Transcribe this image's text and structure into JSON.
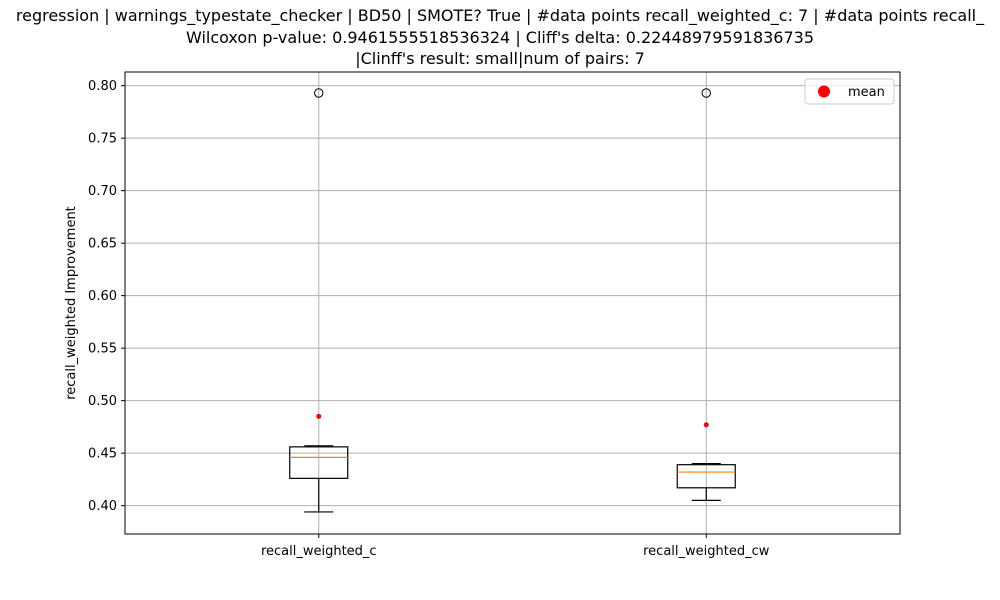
{
  "chart_data": {
    "type": "box",
    "title_lines": [
      "regression | warnings_typestate_checker | BD50 | SMOTE? True | #data points recall_weighted_c: 7 | #data points recall_",
      "Wilcoxon p-value: 0.9461555518536324 | Cliff's delta: 0.22448979591836735",
      "|Clinff's result: small|num of pairs: 7"
    ],
    "xlabel": "",
    "ylabel": "recall_weighted Improvement",
    "ylim": [
      0.373,
      0.813
    ],
    "yticks": [
      "0.40",
      "0.45",
      "0.50",
      "0.55",
      "0.60",
      "0.65",
      "0.70",
      "0.75",
      "0.80"
    ],
    "grid": true,
    "legend": {
      "position": "top-right",
      "entries": [
        {
          "label": "mean",
          "color": "#ff0000"
        }
      ]
    },
    "categories": [
      "recall_weighted_c",
      "recall_weighted_cw"
    ],
    "boxes": [
      {
        "name": "recall_weighted_c",
        "whisker_low": 0.394,
        "q1": 0.426,
        "median": 0.446,
        "q3": 0.456,
        "whisker_high": 0.457,
        "outliers": [
          0.793
        ],
        "mean": 0.485
      },
      {
        "name": "recall_weighted_cw",
        "whisker_low": 0.405,
        "q1": 0.417,
        "median": 0.432,
        "q3": 0.439,
        "whisker_high": 0.44,
        "outliers": [
          0.793
        ],
        "mean": 0.477
      }
    ],
    "colors": {
      "box": "#000000",
      "median": "#ff7f0e",
      "mean": "#ff0000",
      "grid": "#b0b0b0"
    }
  }
}
